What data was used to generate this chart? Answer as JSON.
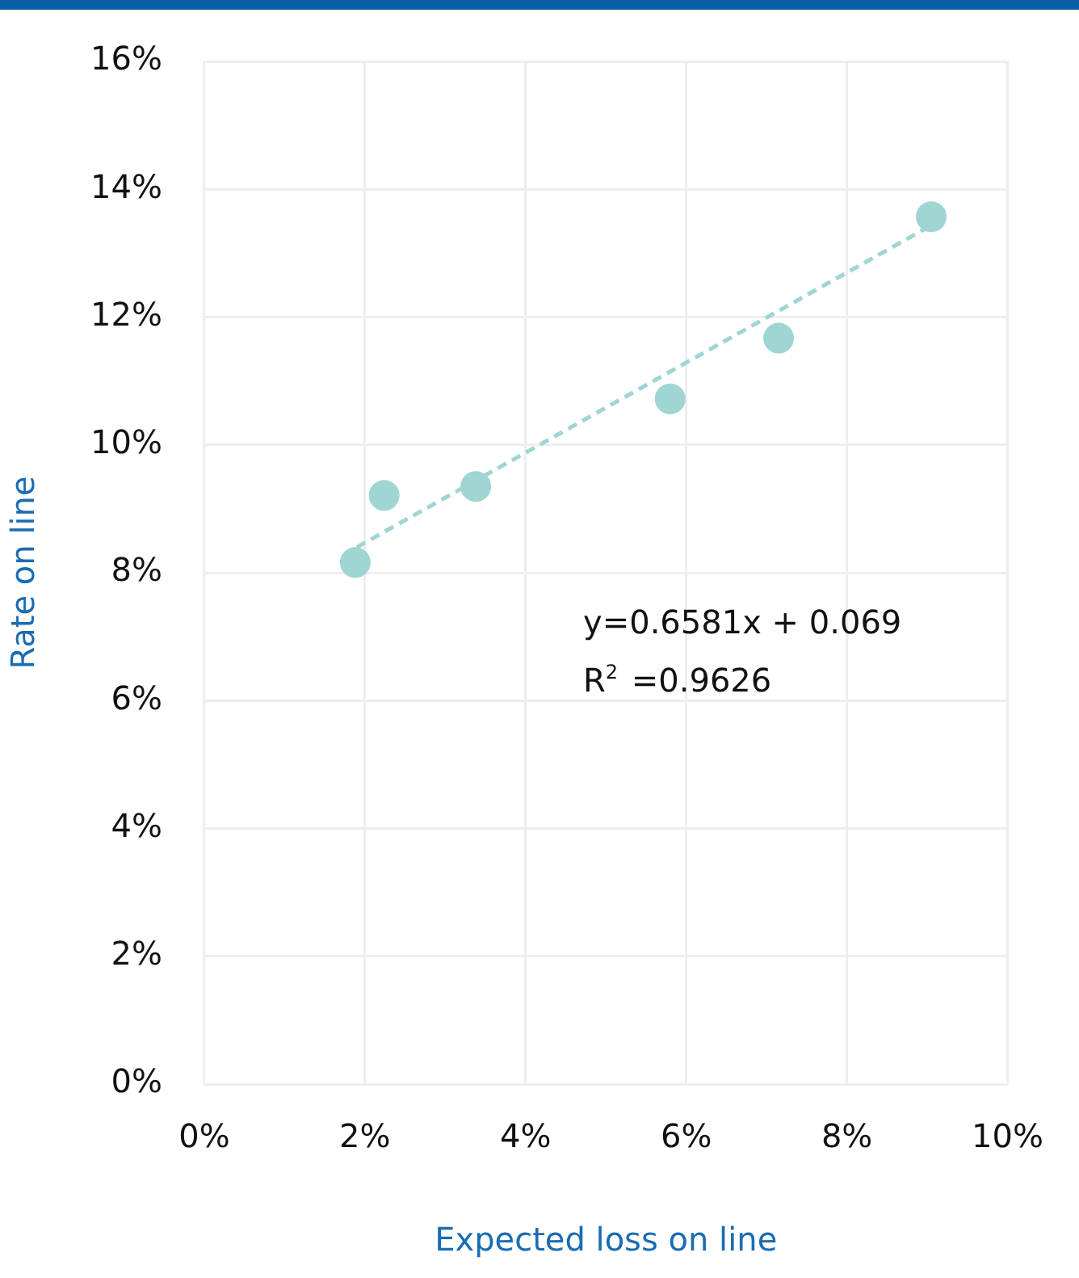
{
  "chart_data": {
    "type": "scatter",
    "xlabel": "Expected loss on line",
    "ylabel": "Rate on line",
    "x": [
      1.88,
      2.24,
      3.38,
      5.8,
      7.15,
      9.05
    ],
    "series": [
      {
        "color": "#9fd5d3",
        "values": [
          8.16,
          9.21,
          9.35,
          10.72,
          11.67,
          13.57
        ],
        "marker": "circle"
      },
      {
        "type": "line",
        "color": "#9fd5d3",
        "x": [
          1.9,
          9.0
        ],
        "values": [
          8.4,
          13.4
        ],
        "line_style": "dashed",
        "marker": "none"
      }
    ],
    "xlim": [
      0,
      10
    ],
    "ylim": [
      0,
      16
    ],
    "xticks": [
      {
        "value": 0,
        "label": "0%"
      },
      {
        "value": 2,
        "label": "2%"
      },
      {
        "value": 4,
        "label": "4%"
      },
      {
        "value": 6,
        "label": "6%"
      },
      {
        "value": 8,
        "label": "8%"
      },
      {
        "value": 10,
        "label": "10%"
      }
    ],
    "yticks": [
      {
        "value": 0,
        "label": "0%"
      },
      {
        "value": 2,
        "label": "2%"
      },
      {
        "value": 4,
        "label": "4%"
      },
      {
        "value": 6,
        "label": "6%"
      },
      {
        "value": 8,
        "label": "8%"
      },
      {
        "value": 10,
        "label": "10%"
      },
      {
        "value": 12,
        "label": "12%"
      },
      {
        "value": 14,
        "label": "14%"
      },
      {
        "value": 16,
        "label": "16%"
      }
    ],
    "annotations": [
      "y=0.6581x + 0.069",
      "R$^{2}$ =0.9626"
    ],
    "grid": true,
    "legend": false
  }
}
